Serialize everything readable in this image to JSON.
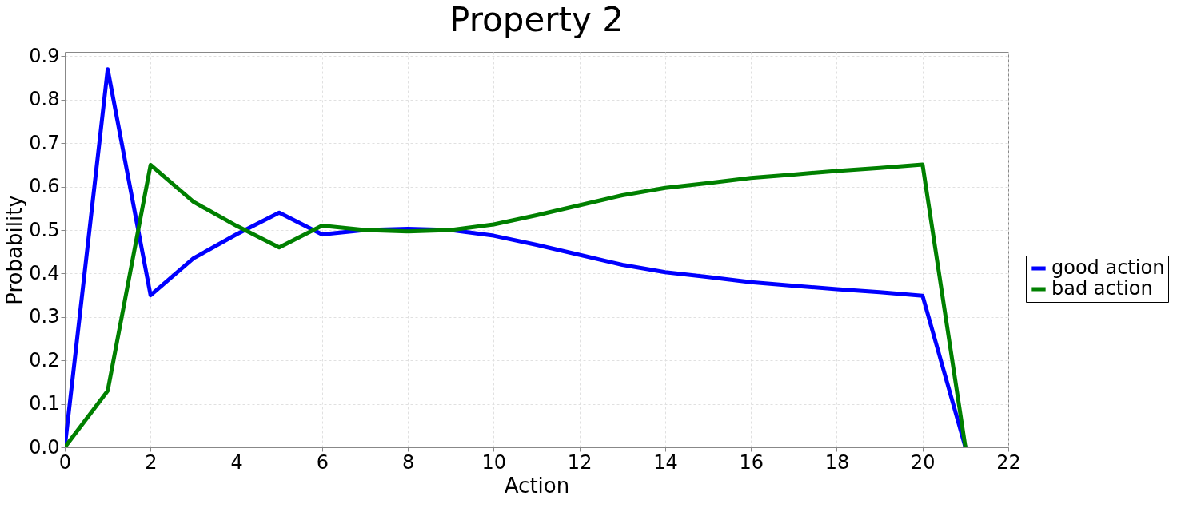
{
  "chart_data": {
    "type": "line",
    "title": "Property 2",
    "xlabel": "Action",
    "ylabel": "Probability",
    "x": [
      0,
      1,
      2,
      3,
      4,
      5,
      6,
      7,
      8,
      9,
      10,
      11,
      12,
      13,
      14,
      15,
      16,
      17,
      18,
      19,
      20,
      21
    ],
    "series": [
      {
        "name": "good action",
        "color": "#0000ff",
        "values": [
          0,
          0.87,
          0.35,
          0.435,
          0.49,
          0.54,
          0.49,
          0.5,
          0.503,
          0.5,
          0.487,
          0.466,
          0.443,
          0.42,
          0.403,
          0.392,
          0.38,
          0.372,
          0.364,
          0.357,
          0.349,
          0
        ]
      },
      {
        "name": "bad action",
        "color": "#008000",
        "values": [
          0,
          0.13,
          0.65,
          0.565,
          0.51,
          0.46,
          0.51,
          0.5,
          0.497,
          0.5,
          0.513,
          0.534,
          0.557,
          0.58,
          0.597,
          0.608,
          0.62,
          0.628,
          0.636,
          0.643,
          0.651,
          0
        ]
      }
    ],
    "xlim": [
      0,
      22
    ],
    "xticks": [
      0,
      2,
      4,
      6,
      8,
      10,
      12,
      14,
      16,
      18,
      20,
      22
    ],
    "ylim": [
      0,
      0.91
    ],
    "yticks": [
      {
        "value": 0,
        "label": "0.0"
      },
      {
        "value": 0.1,
        "label": "0.1"
      },
      {
        "value": 0.2,
        "label": "0.2"
      },
      {
        "value": 0.3,
        "label": "0.3"
      },
      {
        "value": 0.4,
        "label": "0.4"
      },
      {
        "value": 0.5,
        "label": "0.5"
      },
      {
        "value": 0.6,
        "label": "0.6"
      },
      {
        "value": 0.7,
        "label": "0.7"
      },
      {
        "value": 0.8,
        "label": "0.8"
      },
      {
        "value": 0.9,
        "label": "0.9"
      }
    ],
    "grid": true,
    "legend": "right",
    "marker": "none",
    "line_style": "solid"
  }
}
